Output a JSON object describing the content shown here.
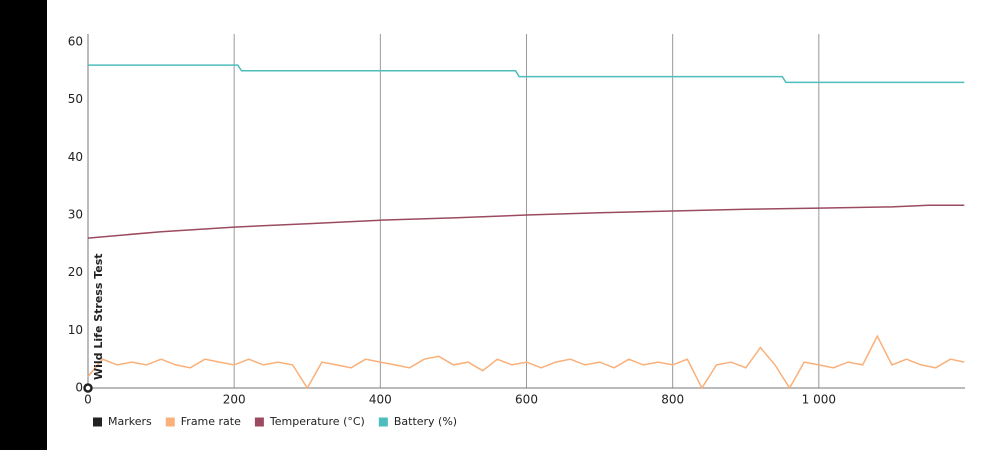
{
  "chart_data": {
    "type": "line",
    "xlim": [
      0,
      1200
    ],
    "ylim": [
      0,
      60
    ],
    "xticks": [
      0,
      200,
      400,
      600,
      800,
      {
        "value": 1000,
        "label": "1 000"
      }
    ],
    "yticks": [
      0,
      10,
      20,
      30,
      40,
      50,
      60
    ],
    "grid": "x",
    "legend": "bottom-left",
    "markers": {
      "name": "Markers",
      "color": "#222222",
      "x": [
        0
      ],
      "labels": [
        "Wild Life Stress Test"
      ]
    },
    "series": [
      {
        "name": "Frame rate",
        "color": "#f9b07a",
        "x": [
          0,
          20,
          40,
          60,
          80,
          100,
          120,
          140,
          160,
          180,
          200,
          220,
          240,
          260,
          280,
          300,
          320,
          340,
          360,
          380,
          400,
          420,
          440,
          460,
          480,
          500,
          520,
          540,
          560,
          580,
          600,
          620,
          640,
          660,
          680,
          700,
          720,
          740,
          760,
          780,
          800,
          820,
          840,
          860,
          880,
          900,
          920,
          940,
          960,
          980,
          1000,
          1020,
          1040,
          1060,
          1080,
          1100,
          1120,
          1140,
          1160,
          1180,
          1199
        ],
        "values": [
          2,
          5,
          4,
          4.5,
          4,
          5,
          4,
          3.5,
          5,
          4.5,
          4,
          5,
          4,
          4.5,
          4,
          0,
          4.5,
          4,
          3.5,
          5,
          4.5,
          4,
          3.5,
          5,
          5.5,
          4,
          4.5,
          3,
          5,
          4,
          4.5,
          3.5,
          4.5,
          5,
          4,
          4.5,
          3.5,
          5,
          4,
          4.5,
          4,
          5,
          0,
          4,
          4.5,
          3.5,
          7,
          4,
          0,
          4.5,
          4,
          3.5,
          4.5,
          4,
          9,
          4,
          5,
          4,
          3.5,
          5,
          4.5
        ]
      },
      {
        "name": "Temperature (°C)",
        "color": "#9c4a60",
        "x": [
          0,
          100,
          200,
          300,
          400,
          500,
          600,
          700,
          800,
          900,
          1000,
          1100,
          1150,
          1199
        ],
        "values": [
          26,
          27.1,
          27.9,
          28.5,
          29.1,
          29.5,
          30,
          30.4,
          30.7,
          31,
          31.2,
          31.4,
          31.7,
          31.7
        ]
      },
      {
        "name": "Battery (%)",
        "color": "#4dbdbd",
        "x": [
          0,
          205,
          210,
          585,
          590,
          950,
          955,
          1199
        ],
        "values": [
          56,
          56,
          55,
          55,
          54,
          54,
          53,
          53
        ]
      }
    ]
  }
}
